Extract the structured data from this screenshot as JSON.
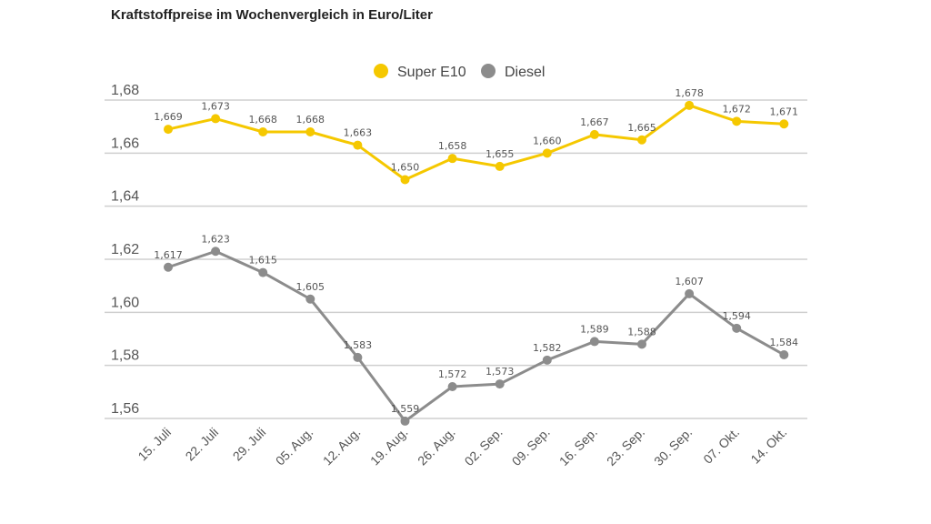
{
  "chart_data": {
    "type": "line",
    "title": "Kraftstoffpreise im Wochenvergleich in Euro/Liter",
    "categories": [
      "15. Juli",
      "22. Juli",
      "29. Juli",
      "05. Aug.",
      "12. Aug.",
      "19. Aug.",
      "26. Aug.",
      "02. Sep.",
      "09. Sep.",
      "16. Sep.",
      "23. Sep.",
      "30. Sep.",
      "07. Okt.",
      "14. Okt."
    ],
    "series": [
      {
        "name": "Super E10",
        "color": "#f5c800",
        "values": [
          1.669,
          1.673,
          1.668,
          1.668,
          1.663,
          1.65,
          1.658,
          1.655,
          1.66,
          1.667,
          1.665,
          1.678,
          1.672,
          1.671
        ],
        "labels": [
          "1,669",
          "1,673",
          "1,668",
          "1,668",
          "1,663",
          "1,650",
          "1,658",
          "1,655",
          "1,660",
          "1,667",
          "1,665",
          "1,678",
          "1,672",
          "1,671"
        ]
      },
      {
        "name": "Diesel",
        "color": "#8c8c8c",
        "values": [
          1.617,
          1.623,
          1.615,
          1.605,
          1.583,
          1.559,
          1.572,
          1.573,
          1.582,
          1.589,
          1.588,
          1.607,
          1.594,
          1.584
        ],
        "labels": [
          "1,617",
          "1,623",
          "1,615",
          "1,605",
          "1,583",
          "1,559",
          "1,572",
          "1,573",
          "1,582",
          "1,589",
          "1,588",
          "1,607",
          "1,594",
          "1,584"
        ]
      }
    ],
    "yticks": [
      1.68,
      1.66,
      1.64,
      1.62,
      1.6,
      1.58,
      1.56
    ],
    "ytick_labels": [
      "1,68",
      "1,66",
      "1,64",
      "1,62",
      "1,60",
      "1,58",
      "1,56"
    ],
    "ylim": [
      1.56,
      1.68
    ],
    "grid": true,
    "legend": "top-center",
    "xlabel": "",
    "ylabel": ""
  }
}
